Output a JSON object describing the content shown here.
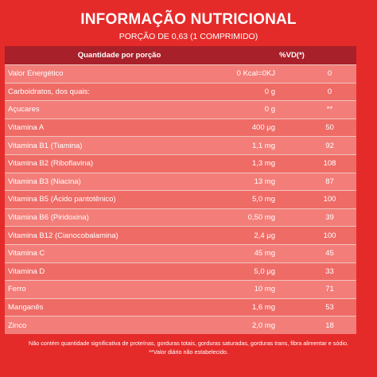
{
  "title": "INFORMAÇÃO NUTRICIONAL",
  "subtitle": "PORÇÃO DE 0,63 (1 COMPRIMIDO)",
  "header": {
    "quantity_label": "Quantidade por porção",
    "vd_label": "%VD(*)"
  },
  "rows": [
    {
      "name": "Valor Energético",
      "qty": "0 Kcal=0KJ",
      "vd": "0"
    },
    {
      "name": "Carboidratos, dos quais:",
      "qty": "0 g",
      "vd": "0"
    },
    {
      "name": "Açucares",
      "qty": "0 g",
      "vd": "**"
    },
    {
      "name": "Vitamina A",
      "qty": "400 µg",
      "vd": "50"
    },
    {
      "name": "Vitamina B1 (Tiamina)",
      "qty": "1,1 mg",
      "vd": "92"
    },
    {
      "name": "Vitamina B2 (Riboflavina)",
      "qty": "1,3 mg",
      "vd": "108"
    },
    {
      "name": "Vitamina B3 (Niacina)",
      "qty": "13 mg",
      "vd": "87"
    },
    {
      "name": "Vitamina B5 (Ácido pantotênico)",
      "qty": "5,0 mg",
      "vd": "100"
    },
    {
      "name": "Vitamina B6 (Piridoxina)",
      "qty": "0,50 mg",
      "vd": "39"
    },
    {
      "name": "Vitamina B12 (Cianocobalamina)",
      "qty": "2,4 µg",
      "vd": "100"
    },
    {
      "name": "Vitamina C",
      "qty": "45 mg",
      "vd": "45"
    },
    {
      "name": "Vitamina D",
      "qty": "5,0 µg",
      "vd": "33"
    },
    {
      "name": "Ferro",
      "qty": "10 mg",
      "vd": "71"
    },
    {
      "name": "Manganês",
      "qty": "1,6 mg",
      "vd": "53"
    },
    {
      "name": "Zinco",
      "qty": "2,0 mg",
      "vd": "18"
    }
  ],
  "footnotes": {
    "line1": "Não contém quantidade significativa de proteínas, gorduras totais, gorduras saturadas, gorduras trans, fibra alimentar e sódio.",
    "line2": "**Valor diário não estabelecido."
  },
  "colors": {
    "background": "#e52b2a",
    "header": "#a8202a",
    "row_light": "#f37d78",
    "row_dark": "#ef6b66"
  }
}
